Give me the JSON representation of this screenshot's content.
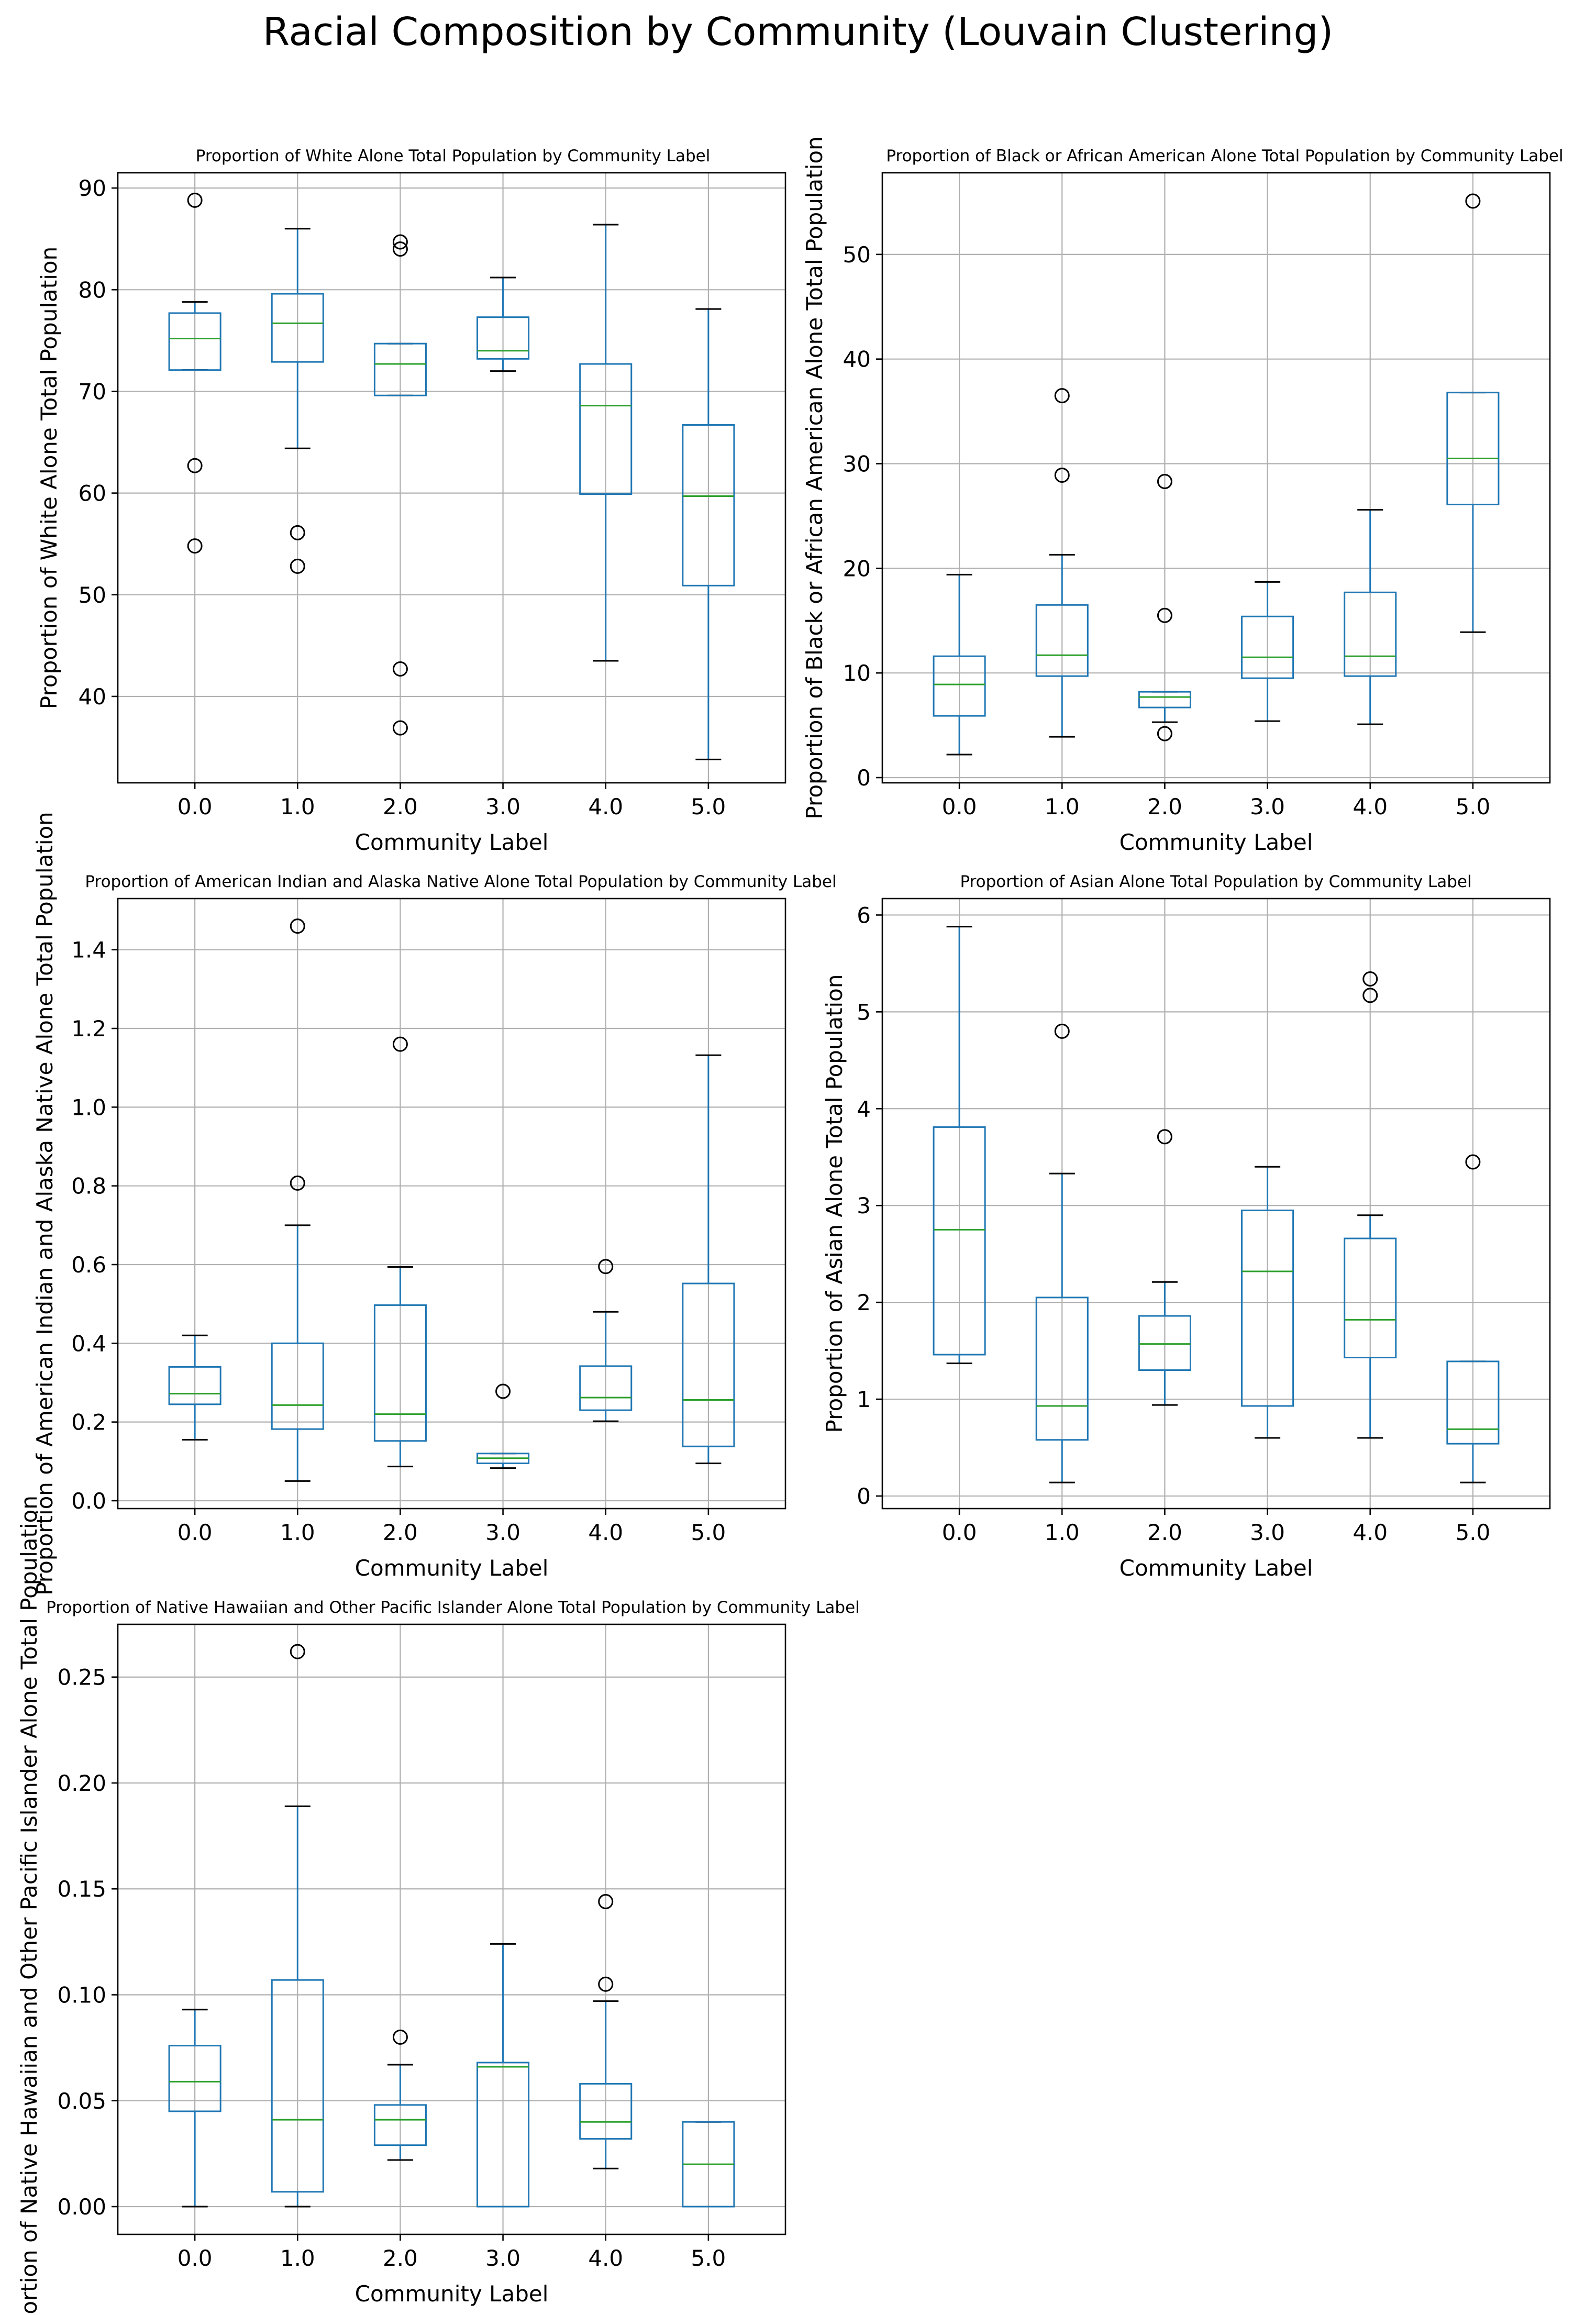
{
  "title": "Racial Composition by Community (Louvain Clustering)",
  "chart_data": [
    {
      "type": "box",
      "title": "Proportion of White Alone Total Population by Community Label",
      "xlabel": "Community Label",
      "ylabel": "Proportion of White Alone Total Population",
      "categories": [
        "0.0",
        "1.0",
        "2.0",
        "3.0",
        "4.0",
        "5.0"
      ],
      "ylim": [
        31.5,
        91.5
      ],
      "yticks": [
        40,
        50,
        60,
        70,
        80,
        90
      ],
      "ytick_labels": [
        "40",
        "50",
        "60",
        "70",
        "80",
        "90"
      ],
      "boxes": [
        {
          "whislo": 72.1,
          "q1": 72.1,
          "med": 75.2,
          "q3": 77.7,
          "whishi": 78.8,
          "fliers": [
            88.8,
            62.7,
            54.8
          ]
        },
        {
          "whislo": 64.4,
          "q1": 72.9,
          "med": 76.7,
          "q3": 79.6,
          "whishi": 86.0,
          "fliers": [
            56.1,
            52.8
          ]
        },
        {
          "whislo": 69.6,
          "q1": 69.6,
          "med": 72.7,
          "q3": 74.7,
          "whishi": 74.7,
          "fliers": [
            84.7,
            84.0,
            42.7,
            36.9
          ]
        },
        {
          "whislo": 72.0,
          "q1": 73.2,
          "med": 74.0,
          "q3": 77.3,
          "whishi": 81.2,
          "fliers": []
        },
        {
          "whislo": 43.5,
          "q1": 59.9,
          "med": 68.6,
          "q3": 72.7,
          "whishi": 86.4,
          "fliers": []
        },
        {
          "whislo": 33.8,
          "q1": 50.9,
          "med": 59.7,
          "q3": 66.7,
          "whishi": 78.1,
          "fliers": []
        }
      ]
    },
    {
      "type": "box",
      "title": "Proportion of Black or African American Alone Total Population by Community Label",
      "xlabel": "Community Label",
      "ylabel": "Proportion of Black or African American Alone Total Population",
      "categories": [
        "0.0",
        "1.0",
        "2.0",
        "3.0",
        "4.0",
        "5.0"
      ],
      "ylim": [
        -0.5,
        57.8
      ],
      "yticks": [
        0,
        10,
        20,
        30,
        40,
        50
      ],
      "ytick_labels": [
        "0",
        "10",
        "20",
        "30",
        "40",
        "50"
      ],
      "boxes": [
        {
          "whislo": 2.2,
          "q1": 5.9,
          "med": 8.9,
          "q3": 11.6,
          "whishi": 19.4,
          "fliers": []
        },
        {
          "whislo": 3.9,
          "q1": 9.7,
          "med": 11.7,
          "q3": 16.5,
          "whishi": 21.3,
          "fliers": [
            36.5,
            28.9
          ]
        },
        {
          "whislo": 5.3,
          "q1": 6.7,
          "med": 7.7,
          "q3": 8.2,
          "whishi": 8.2,
          "fliers": [
            28.3,
            15.5,
            4.2
          ]
        },
        {
          "whislo": 5.4,
          "q1": 9.5,
          "med": 11.5,
          "q3": 15.4,
          "whishi": 18.7,
          "fliers": []
        },
        {
          "whislo": 5.1,
          "q1": 9.7,
          "med": 11.6,
          "q3": 17.7,
          "whishi": 25.6,
          "fliers": []
        },
        {
          "whislo": 13.9,
          "q1": 26.1,
          "med": 30.5,
          "q3": 36.8,
          "whishi": 36.8,
          "fliers": [
            55.1
          ]
        }
      ]
    },
    {
      "type": "box",
      "title": "Proportion of American Indian and Alaska Native Alone Total Population by Community Label",
      "xlabel": "Community Label",
      "ylabel": "Proportion of American Indian and Alaska Native Alone Total Population",
      "categories": [
        "0.0",
        "1.0",
        "2.0",
        "3.0",
        "4.0",
        "5.0"
      ],
      "ylim": [
        -0.02,
        1.53
      ],
      "yticks": [
        0.0,
        0.2,
        0.4,
        0.6,
        0.8,
        1.0,
        1.2,
        1.4
      ],
      "ytick_labels": [
        "0.0",
        "0.2",
        "0.4",
        "0.6",
        "0.8",
        "1.0",
        "1.2",
        "1.4"
      ],
      "boxes": [
        {
          "whislo": 0.155,
          "q1": 0.245,
          "med": 0.272,
          "q3": 0.34,
          "whishi": 0.42,
          "fliers": []
        },
        {
          "whislo": 0.05,
          "q1": 0.182,
          "med": 0.243,
          "q3": 0.4,
          "whishi": 0.7,
          "fliers": [
            1.46,
            0.807
          ]
        },
        {
          "whislo": 0.087,
          "q1": 0.152,
          "med": 0.22,
          "q3": 0.497,
          "whishi": 0.594,
          "fliers": [
            1.16
          ]
        },
        {
          "whislo": 0.083,
          "q1": 0.095,
          "med": 0.108,
          "q3": 0.12,
          "whishi": 0.12,
          "fliers": [
            0.278
          ]
        },
        {
          "whislo": 0.202,
          "q1": 0.23,
          "med": 0.262,
          "q3": 0.342,
          "whishi": 0.48,
          "fliers": [
            0.595
          ]
        },
        {
          "whislo": 0.095,
          "q1": 0.138,
          "med": 0.256,
          "q3": 0.552,
          "whishi": 1.132,
          "fliers": []
        }
      ]
    },
    {
      "type": "box",
      "title": "Proportion of Asian Alone Total Population by Community Label",
      "xlabel": "Community Label",
      "ylabel": "Proportion of Asian Alone Total Population",
      "categories": [
        "0.0",
        "1.0",
        "2.0",
        "3.0",
        "4.0",
        "5.0"
      ],
      "ylim": [
        -0.13,
        6.17
      ],
      "yticks": [
        0,
        1,
        2,
        3,
        4,
        5,
        6
      ],
      "ytick_labels": [
        "0",
        "1",
        "2",
        "3",
        "4",
        "5",
        "6"
      ],
      "boxes": [
        {
          "whislo": 1.37,
          "q1": 1.46,
          "med": 2.75,
          "q3": 3.81,
          "whishi": 5.88,
          "fliers": []
        },
        {
          "whislo": 0.14,
          "q1": 0.58,
          "med": 0.93,
          "q3": 2.05,
          "whishi": 3.33,
          "fliers": [
            4.8
          ]
        },
        {
          "whislo": 0.94,
          "q1": 1.3,
          "med": 1.57,
          "q3": 1.86,
          "whishi": 2.21,
          "fliers": [
            3.71
          ]
        },
        {
          "whislo": 0.6,
          "q1": 0.93,
          "med": 2.32,
          "q3": 2.95,
          "whishi": 3.4,
          "fliers": []
        },
        {
          "whislo": 0.6,
          "q1": 1.43,
          "med": 1.82,
          "q3": 2.66,
          "whishi": 2.9,
          "fliers": [
            5.34,
            5.17
          ]
        },
        {
          "whislo": 0.14,
          "q1": 0.54,
          "med": 0.69,
          "q3": 1.39,
          "whishi": 1.39,
          "fliers": [
            3.45
          ]
        }
      ]
    },
    {
      "type": "box",
      "title": "Proportion of Native Hawaiian and Other Pacific Islander Alone Total Population by Community Label",
      "xlabel": "Community Label",
      "ylabel": "Proportion of Native Hawaiian and Other Pacific Islander Alone Total Population",
      "categories": [
        "0.0",
        "1.0",
        "2.0",
        "3.0",
        "4.0",
        "5.0"
      ],
      "ylim": [
        -0.0131,
        0.2749
      ],
      "yticks": [
        0.0,
        0.05,
        0.1,
        0.15,
        0.2,
        0.25
      ],
      "ytick_labels": [
        "0.00",
        "0.05",
        "0.10",
        "0.15",
        "0.20",
        "0.25"
      ],
      "boxes": [
        {
          "whislo": 0.0,
          "q1": 0.045,
          "med": 0.059,
          "q3": 0.076,
          "whishi": 0.093,
          "fliers": []
        },
        {
          "whislo": 0.0,
          "q1": 0.007,
          "med": 0.041,
          "q3": 0.107,
          "whishi": 0.189,
          "fliers": [
            0.262
          ]
        },
        {
          "whislo": 0.022,
          "q1": 0.029,
          "med": 0.041,
          "q3": 0.048,
          "whishi": 0.067,
          "fliers": [
            0.08
          ]
        },
        {
          "whislo": 0.0,
          "q1": 0.0,
          "med": 0.066,
          "q3": 0.068,
          "whishi": 0.124,
          "fliers": []
        },
        {
          "whislo": 0.018,
          "q1": 0.032,
          "med": 0.04,
          "q3": 0.058,
          "whishi": 0.097,
          "fliers": [
            0.144,
            0.105
          ]
        },
        {
          "whislo": 0.0,
          "q1": 0.0,
          "med": 0.02,
          "q3": 0.04,
          "whishi": 0.04,
          "fliers": []
        }
      ]
    }
  ]
}
